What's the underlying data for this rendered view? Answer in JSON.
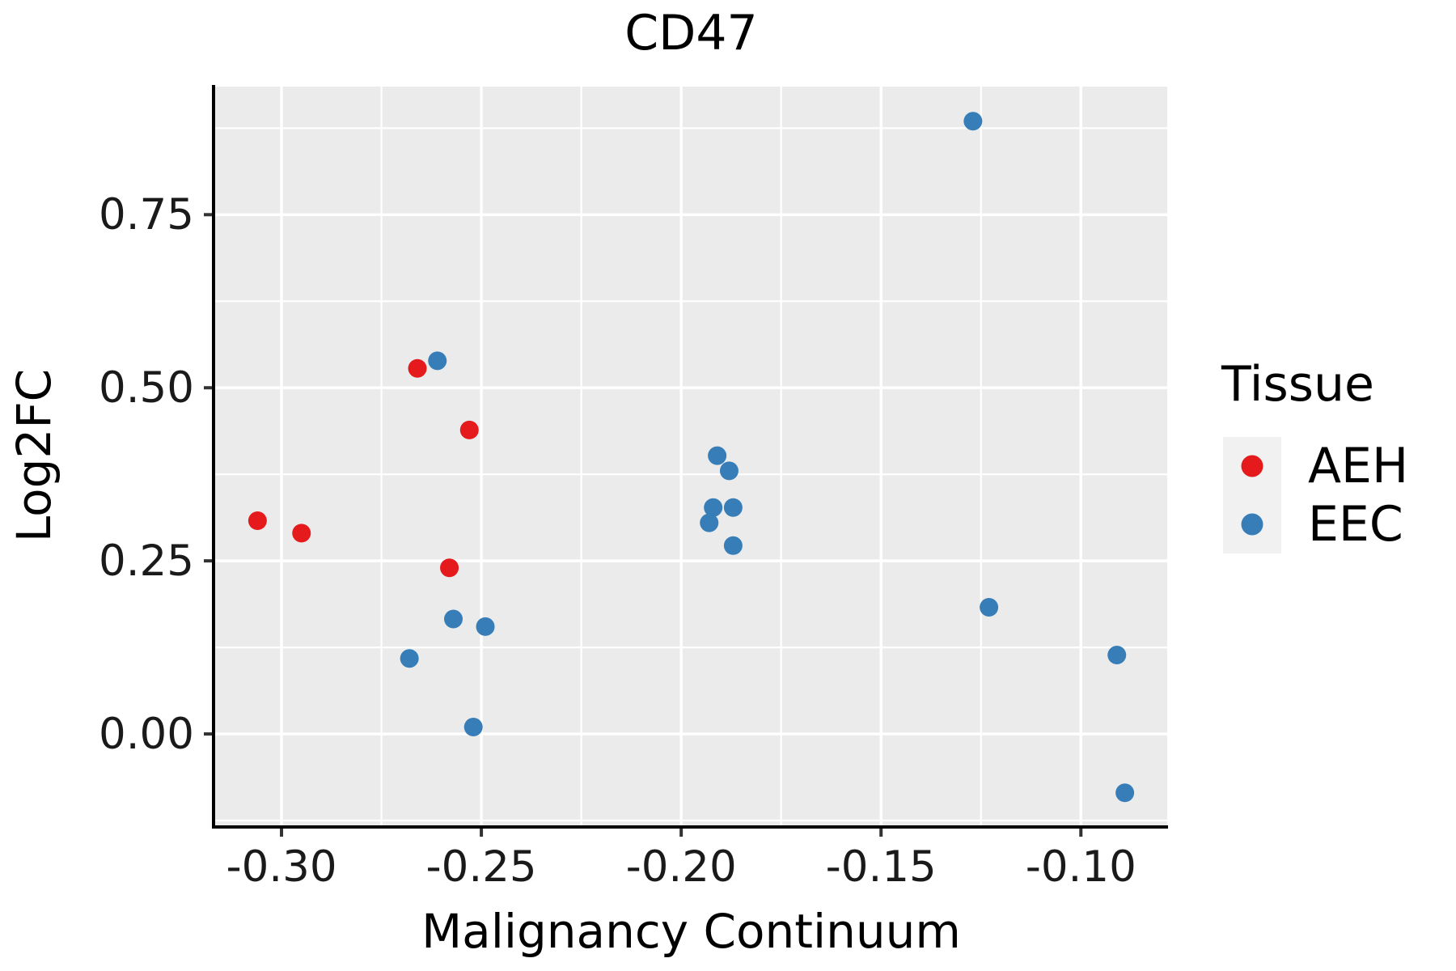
{
  "title": "CD47",
  "axes": {
    "x": {
      "label": "Malignancy Continuum",
      "domain": [
        -0.3166,
        -0.0784
      ],
      "major_ticks": [
        -0.3,
        -0.25,
        -0.2,
        -0.15,
        -0.1
      ],
      "tick_labels": [
        "-0.30",
        "-0.25",
        "-0.20",
        "-0.15",
        "-0.10"
      ],
      "minor_ticks": [
        -0.275,
        -0.225,
        -0.175,
        -0.125
      ]
    },
    "y": {
      "label": "Log2FC",
      "domain": [
        -0.132,
        0.935
      ],
      "major_ticks": [
        0.0,
        0.25,
        0.5,
        0.75
      ],
      "tick_labels": [
        "0.00",
        "0.25",
        "0.50",
        "0.75"
      ],
      "minor_ticks": [
        -0.125,
        0.125,
        0.375,
        0.625,
        0.875
      ]
    }
  },
  "legend": {
    "title": "Tissue",
    "entries": [
      {
        "label": "AEH",
        "color": "#E41A1C"
      },
      {
        "label": "EEC",
        "color": "#377EB8"
      }
    ]
  },
  "colors": {
    "panel_background": "#EBEBEB",
    "gridline": "#FFFFFF",
    "axis_line": "#000000",
    "tick_text": "#1a1a1a",
    "aeh_red": "#E41A1C",
    "eec_blue": "#377EB8",
    "legend_key_background": "#F1F1F1"
  },
  "chart_data": {
    "type": "scatter",
    "title": "CD47",
    "xlabel": "Malignancy Continuum",
    "ylabel": "Log2FC",
    "xlim": [
      -0.3166,
      -0.0784
    ],
    "ylim": [
      -0.132,
      0.935
    ],
    "grid": true,
    "legend_position": "right",
    "legend_title": "Tissue",
    "series": [
      {
        "name": "AEH",
        "color": "#E41A1C",
        "points": [
          [
            -0.306,
            0.308
          ],
          [
            -0.295,
            0.29
          ],
          [
            -0.266,
            0.528
          ],
          [
            -0.258,
            0.24
          ],
          [
            -0.253,
            0.439
          ]
        ]
      },
      {
        "name": "EEC",
        "color": "#377EB8",
        "points": [
          [
            -0.268,
            0.109
          ],
          [
            -0.261,
            0.539
          ],
          [
            -0.257,
            0.166
          ],
          [
            -0.252,
            0.01
          ],
          [
            -0.249,
            0.155
          ],
          [
            -0.193,
            0.305
          ],
          [
            -0.192,
            0.327
          ],
          [
            -0.191,
            0.402
          ],
          [
            -0.188,
            0.38
          ],
          [
            -0.187,
            0.327
          ],
          [
            -0.187,
            0.272
          ],
          [
            -0.127,
            0.885
          ],
          [
            -0.123,
            0.183
          ],
          [
            -0.091,
            0.114
          ],
          [
            -0.089,
            -0.085
          ]
        ]
      }
    ]
  }
}
